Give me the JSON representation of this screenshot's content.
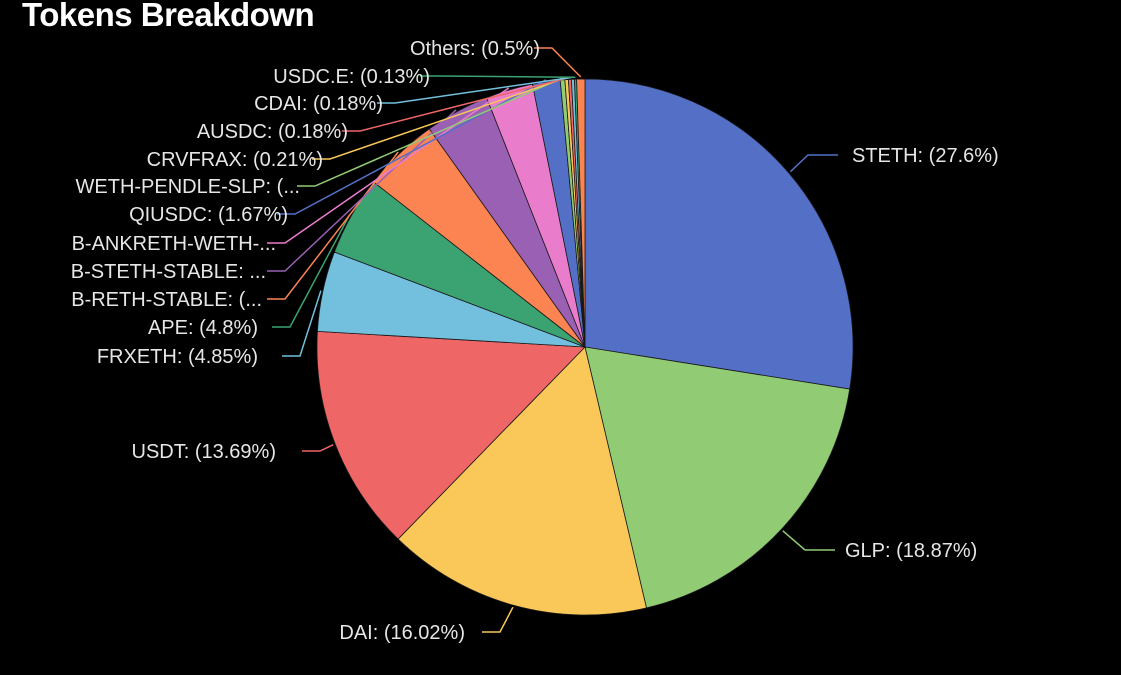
{
  "title": "Tokens Breakdown",
  "chart_data": {
    "type": "pie",
    "title": "Tokens Breakdown",
    "slices": [
      {
        "label": "STETH: (27.6%)",
        "value": 27.6,
        "color": "#5470c6",
        "side": "right"
      },
      {
        "label": "GLP: (18.87%)",
        "value": 18.87,
        "color": "#91cc75",
        "side": "right"
      },
      {
        "label": "DAI: (16.02%)",
        "value": 16.02,
        "color": "#fac858",
        "side": "right"
      },
      {
        "label": "USDT: (13.69%)",
        "value": 13.69,
        "color": "#ee6666",
        "side": "left"
      },
      {
        "label": "FRXETH: (4.85%)",
        "value": 4.85,
        "color": "#73c0de",
        "side": "left"
      },
      {
        "label": "APE: (4.8%)",
        "value": 4.8,
        "color": "#3ba272",
        "side": "left"
      },
      {
        "label": "B-RETH-STABLE: (...",
        "value": 4.6,
        "color": "#fc8452",
        "side": "left"
      },
      {
        "label": "B-STETH-STABLE: ...",
        "value": 3.9,
        "color": "#9a60b4",
        "side": "left"
      },
      {
        "label": "B-ANKRETH-WETH-...",
        "value": 2.85,
        "color": "#ea7ccc",
        "side": "left"
      },
      {
        "label": "QIUSDC: (1.67%)",
        "value": 1.67,
        "color": "#5470c6",
        "side": "left"
      },
      {
        "label": "WETH-PENDLE-SLP: (...",
        "value": 0.28,
        "color": "#91cc75",
        "side": "left"
      },
      {
        "label": "CRVFRAX: (0.21%)",
        "value": 0.21,
        "color": "#fac858",
        "side": "left"
      },
      {
        "label": "AUSDC: (0.18%)",
        "value": 0.18,
        "color": "#ee6666",
        "side": "left"
      },
      {
        "label": "CDAI: (0.18%)",
        "value": 0.18,
        "color": "#73c0de",
        "side": "left"
      },
      {
        "label": "USDC.E: (0.13%)",
        "value": 0.13,
        "color": "#3ba272",
        "side": "left"
      },
      {
        "label": "Others: (0.5%)",
        "value": 0.5,
        "color": "#fc8452",
        "side": "left"
      }
    ]
  }
}
